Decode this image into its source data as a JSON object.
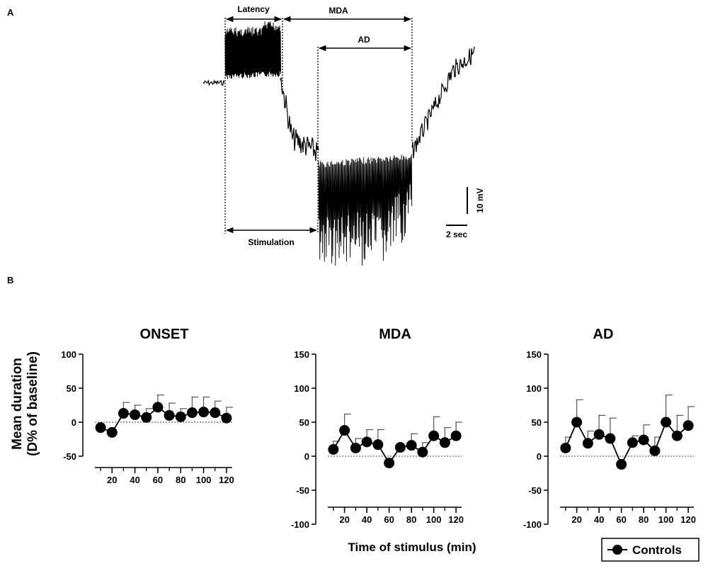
{
  "panel_a_label": "A",
  "panel_b_label": "B",
  "trace": {
    "latency_label": "Latency",
    "mda_label": "MDA",
    "ad_label": "AD",
    "stimulation_label": "Stimulation",
    "scale_voltage": "10 mV",
    "scale_time": "2 sec"
  },
  "shared": {
    "ylabel_line1": "Mean duration",
    "ylabel_line2": "(D% of baseline)",
    "xlabel": "Time of stimulus (min)",
    "legend": "Controls"
  },
  "chart_data": [
    {
      "type": "line",
      "title": "ONSET",
      "x": [
        10,
        20,
        30,
        40,
        50,
        60,
        70,
        80,
        90,
        100,
        110,
        120
      ],
      "series": [
        {
          "name": "Controls",
          "values": [
            -8,
            -15,
            13,
            11,
            7,
            22,
            10,
            8,
            14,
            15,
            14,
            6
          ],
          "errors": [
            0,
            0,
            16,
            14,
            13,
            18,
            18,
            12,
            23,
            22,
            17,
            16
          ]
        }
      ],
      "ylim": [
        -50,
        100
      ],
      "yticks": [
        -50,
        0,
        50,
        100
      ],
      "xticks": [
        20,
        40,
        60,
        80,
        100,
        120
      ],
      "xlim": [
        5,
        125
      ]
    },
    {
      "type": "line",
      "title": "MDA",
      "x": [
        10,
        20,
        30,
        40,
        50,
        60,
        70,
        80,
        90,
        100,
        110,
        120
      ],
      "series": [
        {
          "name": "Controls",
          "values": [
            10,
            38,
            12,
            21,
            17,
            -10,
            13,
            16,
            6,
            30,
            20,
            30
          ],
          "errors": [
            12,
            24,
            14,
            18,
            22,
            0,
            0,
            17,
            14,
            28,
            22,
            20
          ]
        }
      ],
      "ylim": [
        -100,
        150
      ],
      "yticks": [
        -100,
        -50,
        0,
        50,
        100,
        150
      ],
      "xticks": [
        20,
        40,
        60,
        80,
        100,
        120
      ],
      "xlim": [
        5,
        125
      ]
    },
    {
      "type": "line",
      "title": "AD",
      "x": [
        10,
        20,
        30,
        40,
        50,
        60,
        70,
        80,
        90,
        100,
        110,
        120
      ],
      "series": [
        {
          "name": "Controls",
          "values": [
            12,
            50,
            19,
            32,
            26,
            -12,
            20,
            24,
            8,
            50,
            30,
            45
          ],
          "errors": [
            16,
            33,
            18,
            28,
            30,
            0,
            10,
            22,
            20,
            40,
            30,
            28
          ]
        }
      ],
      "ylim": [
        -100,
        150
      ],
      "yticks": [
        -100,
        -50,
        0,
        50,
        100,
        150
      ],
      "xticks": [
        20,
        40,
        60,
        80,
        100,
        120
      ],
      "xlim": [
        5,
        125
      ]
    }
  ]
}
